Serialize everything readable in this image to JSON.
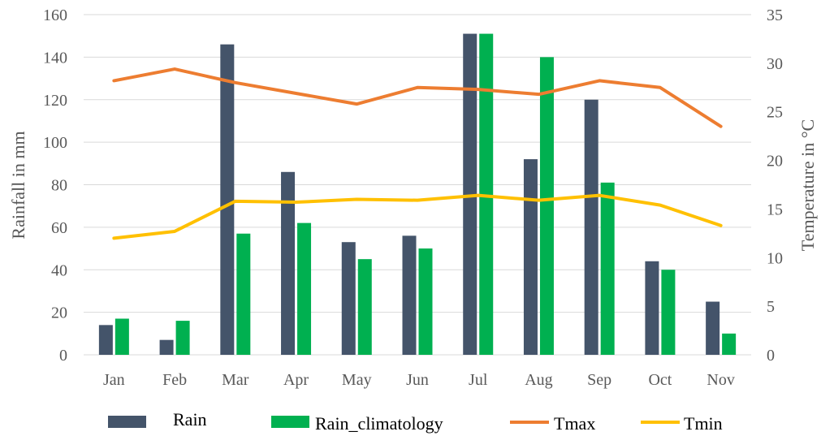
{
  "chart_data": {
    "type": "bar",
    "title": "",
    "categories": [
      "Jan",
      "Feb",
      "Mar",
      "Apr",
      "May",
      "Jun",
      "Jul",
      "Aug",
      "Sep",
      "Oct",
      "Nov"
    ],
    "ylabel": "Rainfall in mm",
    "y2label": "Temperature in °C",
    "ylim": [
      0,
      160
    ],
    "y2lim": [
      0,
      35
    ],
    "yticks": [
      "0",
      "20",
      "40",
      "60",
      "80",
      "100",
      "120",
      "140",
      "160"
    ],
    "y2ticks": [
      "0",
      "5",
      "10",
      "15",
      "20",
      "25",
      "30",
      "35"
    ],
    "grid": true,
    "legend_position": "bottom",
    "series": [
      {
        "name": "Rain",
        "type": "bar",
        "axis": "left",
        "color": "#44546a",
        "values": [
          14,
          7,
          146,
          86,
          53,
          56,
          151,
          92,
          120,
          44,
          25
        ]
      },
      {
        "name": "Rain_climatology",
        "type": "bar",
        "axis": "left",
        "color": "#00b050",
        "values": [
          17,
          16,
          57,
          62,
          45,
          50,
          151,
          140,
          81,
          40,
          10
        ]
      },
      {
        "name": "Tmax",
        "type": "line",
        "axis": "right",
        "color": "#ed7d31",
        "values": [
          28.2,
          29.4,
          28.0,
          26.9,
          25.8,
          27.5,
          27.3,
          26.8,
          28.2,
          27.5,
          23.5
        ]
      },
      {
        "name": "Tmin",
        "type": "line",
        "axis": "right",
        "color": "#ffc000",
        "values": [
          12.0,
          12.7,
          15.8,
          15.7,
          16.0,
          15.9,
          16.4,
          15.9,
          16.4,
          15.4,
          13.3
        ]
      }
    ]
  }
}
